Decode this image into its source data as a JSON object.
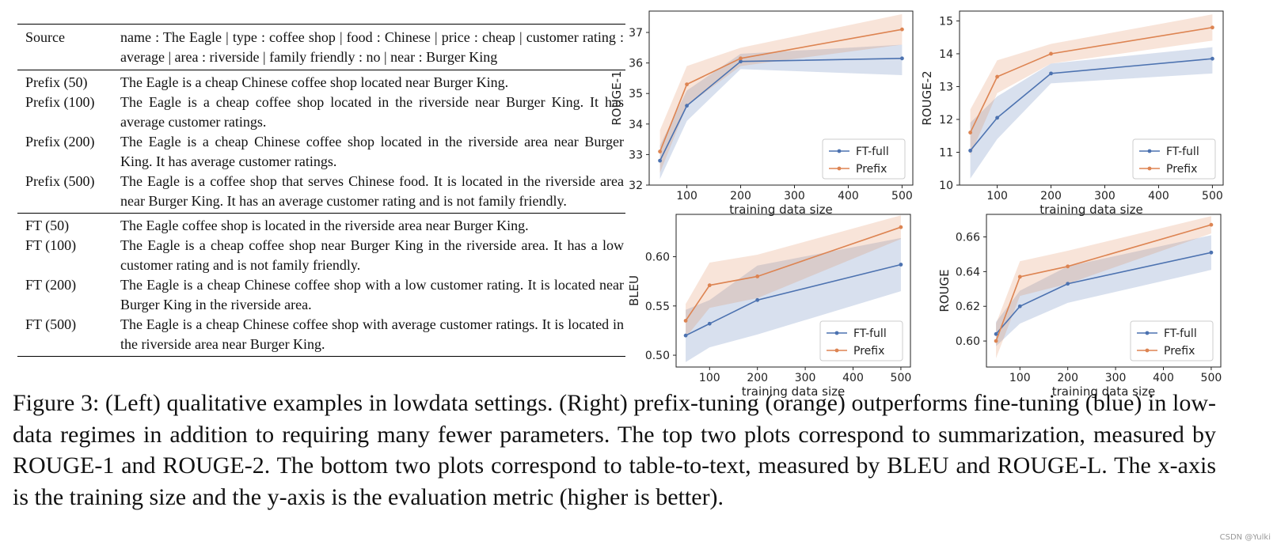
{
  "table": {
    "source": {
      "label": "Source",
      "text": "name : The Eagle | type : coffee shop | food : Chinese | price : cheap | customer rating : average | area : riverside | family friendly : no | near : Burger King"
    },
    "prefix_rows": [
      {
        "label": "Prefix (50)",
        "text": "The Eagle is a cheap Chinese coffee shop located near Burger King."
      },
      {
        "label": "Prefix (100)",
        "text": "The Eagle is a cheap coffee shop located in the riverside near Burger King. It has average customer ratings."
      },
      {
        "label": "Prefix (200)",
        "text": "The Eagle is a cheap Chinese coffee shop located in the riverside area near Burger King. It has average customer ratings."
      },
      {
        "label": "Prefix (500)",
        "text": "The Eagle is a coffee shop that serves Chinese food. It is located in the riverside area near Burger King.  It has an average customer rating and is not family friendly."
      }
    ],
    "ft_rows": [
      {
        "label": "FT (50)",
        "text": "The Eagle coffee shop is located in the riverside area near Burger King."
      },
      {
        "label": "FT (100)",
        "text": "The Eagle is a cheap coffee shop near Burger King in the riverside area. It has a low customer rating and is not family friendly."
      },
      {
        "label": "FT (200)",
        "text": "The Eagle is a cheap Chinese coffee shop with a low customer rating.  It is located near Burger King in the riverside area."
      },
      {
        "label": "FT (500)",
        "text": "The Eagle is a cheap Chinese coffee shop with average customer ratings. It is located in the riverside area near Burger King."
      }
    ]
  },
  "colors": {
    "ft_full": "#4c72b0",
    "prefix": "#dd8452"
  },
  "chart_data": [
    {
      "type": "line",
      "x": [
        50,
        100,
        200,
        500
      ],
      "xticks": [
        100,
        200,
        300,
        400,
        500
      ],
      "xlim": [
        30,
        520
      ],
      "xlabel": "training data size",
      "ylabel": "ROUGE-1",
      "ylim": [
        32,
        37.7
      ],
      "yticks": [
        32,
        33,
        34,
        35,
        36,
        37
      ],
      "legend": "lower-right",
      "series": [
        {
          "name": "FT-full",
          "values": [
            32.8,
            34.6,
            36.05,
            36.15
          ],
          "band_low": [
            32.2,
            34.1,
            35.8,
            35.6
          ],
          "band_high": [
            33.3,
            35.1,
            36.3,
            36.6
          ]
        },
        {
          "name": "Prefix",
          "values": [
            33.1,
            35.3,
            36.15,
            37.1
          ],
          "band_low": [
            32.4,
            34.6,
            35.9,
            36.6
          ],
          "band_high": [
            33.8,
            35.9,
            36.5,
            37.6
          ]
        }
      ]
    },
    {
      "type": "line",
      "x": [
        50,
        100,
        200,
        500
      ],
      "xticks": [
        100,
        200,
        300,
        400,
        500
      ],
      "xlim": [
        30,
        520
      ],
      "xlabel": "training data size",
      "ylabel": "ROUGE-2",
      "ylim": [
        10,
        15.3
      ],
      "yticks": [
        10,
        11,
        12,
        13,
        14,
        15
      ],
      "legend": "lower-right",
      "series": [
        {
          "name": "FT-full",
          "values": [
            11.05,
            12.05,
            13.4,
            13.85
          ],
          "band_low": [
            10.2,
            11.4,
            13.1,
            13.4
          ],
          "band_high": [
            11.9,
            12.7,
            13.7,
            14.2
          ]
        },
        {
          "name": "Prefix",
          "values": [
            11.6,
            13.3,
            14.0,
            14.8
          ],
          "band_low": [
            10.9,
            12.8,
            13.7,
            14.4
          ],
          "band_high": [
            12.3,
            13.8,
            14.3,
            15.2
          ]
        }
      ]
    },
    {
      "type": "line",
      "x": [
        50,
        100,
        200,
        500
      ],
      "xticks": [
        100,
        200,
        300,
        400,
        500
      ],
      "xlim": [
        30,
        520
      ],
      "xlabel": "training data size",
      "ylabel": "BLEU",
      "ylim": [
        0.488,
        0.643
      ],
      "yticks": [
        0.5,
        0.55,
        0.6
      ],
      "ytick_labels": [
        "0.50",
        "0.55",
        "0.60"
      ],
      "legend": "lower-right",
      "series": [
        {
          "name": "FT-full",
          "values": [
            0.52,
            0.532,
            0.556,
            0.592
          ],
          "band_low": [
            0.493,
            0.508,
            0.521,
            0.565
          ],
          "band_high": [
            0.546,
            0.556,
            0.591,
            0.619
          ]
        },
        {
          "name": "Prefix",
          "values": [
            0.535,
            0.571,
            0.58,
            0.63
          ],
          "band_low": [
            0.518,
            0.548,
            0.558,
            0.618
          ],
          "band_high": [
            0.552,
            0.594,
            0.602,
            0.642
          ]
        }
      ]
    },
    {
      "type": "line",
      "x": [
        50,
        100,
        200,
        500
      ],
      "xticks": [
        100,
        200,
        300,
        400,
        500
      ],
      "xlim": [
        30,
        520
      ],
      "xlabel": "training data size",
      "ylabel": "ROUGE",
      "ylim": [
        0.585,
        0.673
      ],
      "yticks": [
        0.6,
        0.62,
        0.64,
        0.66
      ],
      "ytick_labels": [
        "0.60",
        "0.62",
        "0.64",
        "0.66"
      ],
      "legend": "lower-right",
      "series": [
        {
          "name": "FT-full",
          "values": [
            0.604,
            0.62,
            0.633,
            0.651
          ],
          "band_low": [
            0.597,
            0.61,
            0.622,
            0.641
          ],
          "band_high": [
            0.611,
            0.629,
            0.643,
            0.661
          ]
        },
        {
          "name": "Prefix",
          "values": [
            0.6,
            0.637,
            0.643,
            0.667
          ],
          "band_low": [
            0.59,
            0.626,
            0.633,
            0.662
          ],
          "band_high": [
            0.61,
            0.646,
            0.652,
            0.672
          ]
        }
      ]
    }
  ],
  "caption": "Figure 3:  (Left) qualitative examples in lowdata settings. (Right) prefix-tuning (orange) outperforms fine-tuning (blue) in low-data regimes in addition to requiring many fewer parameters. The top two plots correspond to summarization, measured by ROUGE-1 and ROUGE-2. The bottom two plots correspond to table-to-text, measured by BLEU and ROUGE-L. The x-axis is the training size and the y-axis is the evaluation metric (higher is better).",
  "watermark": "CSDN @Yulki"
}
